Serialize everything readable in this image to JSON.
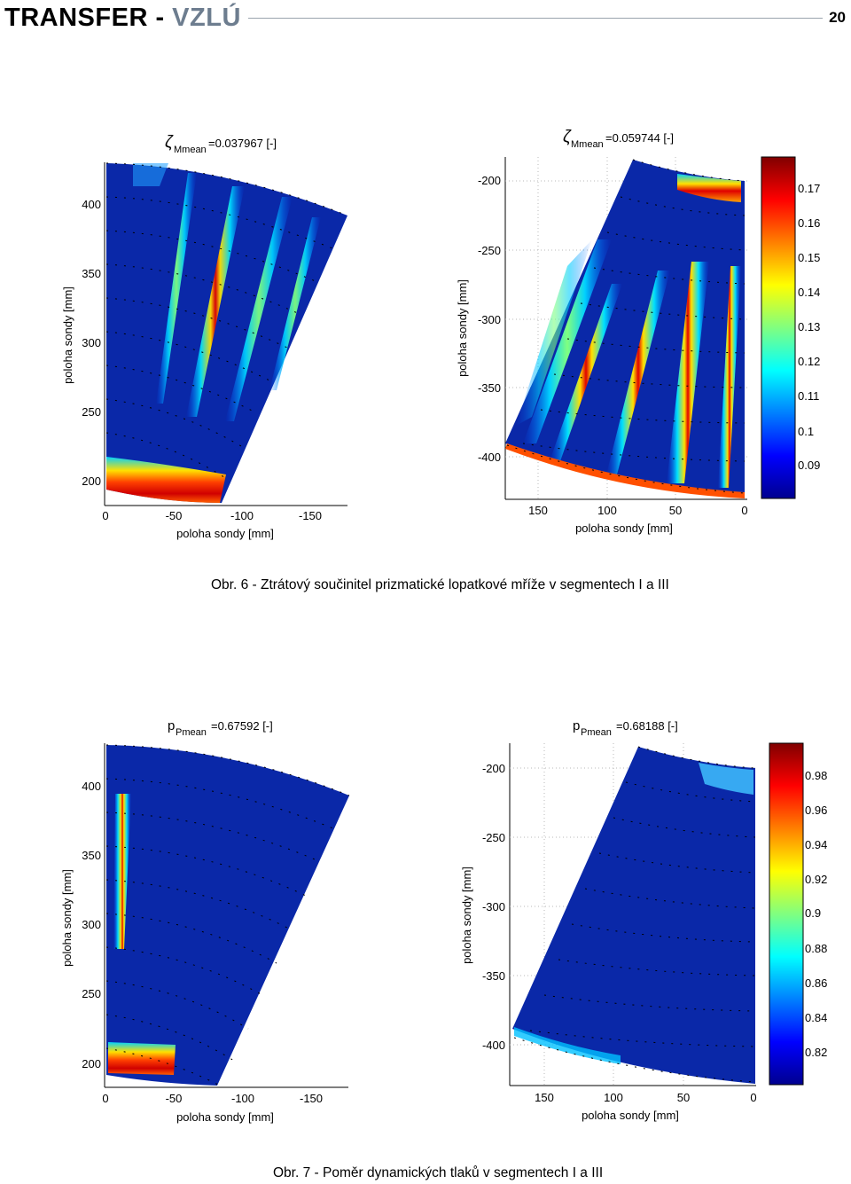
{
  "header": {
    "brand_main": "TRANSFER",
    "brand_sep": " - ",
    "brand_accent": "VZLÚ",
    "page_number": "20"
  },
  "figure6": {
    "caption": "Obr. 6 - Ztrátový součinitel prizmatické lopatkové mříže v segmentech I a III",
    "left": {
      "title_symbol": "ζ",
      "title_subscript": "Mmean",
      "title_value": "=0.037967 [-]",
      "ylabel": "poloha sondy [mm]",
      "xlabel": "poloha sondy [mm]",
      "yticks": [
        "400",
        "350",
        "300",
        "250",
        "200"
      ],
      "xticks": [
        "0",
        "-50",
        "-100",
        "-150"
      ]
    },
    "right": {
      "title_symbol": "ζ",
      "title_subscript": "Mmean",
      "title_value": "=0.059744 [-]",
      "ylabel": "poloha sondy [mm]",
      "xlabel": "poloha sondy [mm]",
      "yticks": [
        "-200",
        "-250",
        "-300",
        "-350",
        "-400"
      ],
      "xticks": [
        "150",
        "100",
        "50",
        "0"
      ]
    },
    "colorbar": [
      "0.17",
      "0.16",
      "0.15",
      "0.14",
      "0.13",
      "0.12",
      "0.11",
      "0.1",
      "0.09"
    ]
  },
  "figure7": {
    "caption": "Obr. 7 - Poměr dynamických tlaků v segmentech I a III",
    "left": {
      "title_symbol": "p",
      "title_subscript": "Pmean",
      "title_value": "=0.67592 [-]",
      "ylabel": "poloha sondy [mm]",
      "xlabel": "poloha sondy [mm]",
      "yticks": [
        "400",
        "350",
        "300",
        "250",
        "200"
      ],
      "xticks": [
        "0",
        "-50",
        "-100",
        "-150"
      ]
    },
    "right": {
      "title_symbol": "p",
      "title_subscript": "Pmean",
      "title_value": "=0.68188 [-]",
      "ylabel": "poloha sondy [mm]",
      "xlabel": "poloha sondy [mm]",
      "yticks": [
        "-200",
        "-250",
        "-300",
        "-350",
        "-400"
      ],
      "xticks": [
        "150",
        "100",
        "50",
        "0"
      ]
    },
    "colorbar": [
      "0.98",
      "0.96",
      "0.94",
      "0.92",
      "0.9",
      "0.88",
      "0.86",
      "0.84",
      "0.82"
    ]
  },
  "colors": {
    "field_blue": "#0a28a8",
    "high_red": "#c40000",
    "header_accent": "#6d7d8f"
  }
}
